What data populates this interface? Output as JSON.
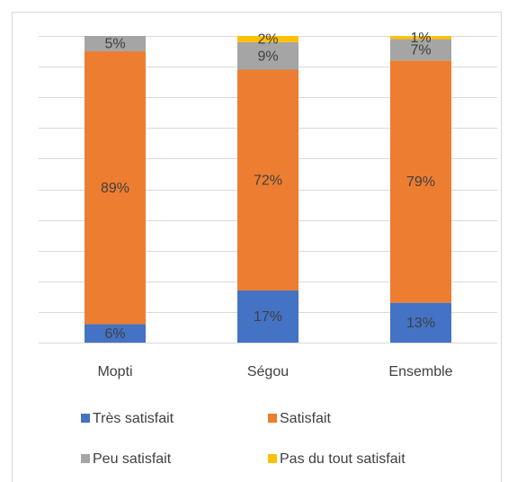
{
  "chart_data": {
    "type": "stacked_bar",
    "categories": [
      "Mopti",
      "Ségou",
      "Ensemble"
    ],
    "series": [
      {
        "name": "Très satisfait",
        "color": "#4472c4",
        "values": [
          6,
          17,
          13
        ],
        "value_labels": [
          "6%",
          "17%",
          "13%"
        ]
      },
      {
        "name": "Satisfait",
        "color": "#ed7d31",
        "values": [
          89,
          72,
          79
        ],
        "value_labels": [
          "89%",
          "72%",
          "79%"
        ]
      },
      {
        "name": "Peu satisfait",
        "color": "#a5a5a5",
        "values": [
          5,
          9,
          7
        ],
        "value_labels": [
          "5%",
          "9%",
          "7%"
        ]
      },
      {
        "name": "Pas du tout satisfait",
        "color": "#ffc000",
        "values": [
          null,
          2,
          1
        ],
        "value_labels": [
          null,
          "2%",
          "1%"
        ]
      }
    ],
    "ylim": [
      0,
      100
    ],
    "yticks": [
      0,
      10,
      20,
      30,
      40,
      50,
      60,
      70,
      80,
      90,
      100
    ],
    "grid": true
  }
}
